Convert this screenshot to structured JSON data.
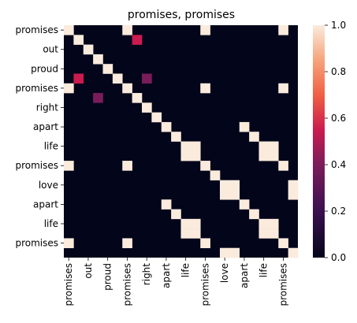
{
  "chart_data": {
    "type": "heatmap",
    "title": "promises, promises",
    "tokens": [
      "promises",
      "?",
      "out",
      "?",
      "proud",
      "?",
      "promises",
      "?",
      "right",
      "?",
      "apart",
      "?",
      "life",
      "?",
      "promises",
      "?",
      "love",
      "?",
      "apart",
      "?",
      "life",
      "?",
      "promises",
      "?"
    ],
    "y_tick_labels": [
      "promises",
      "out",
      "proud",
      "promises",
      "right",
      "apart",
      "life",
      "promises",
      "love",
      "apart",
      "life",
      "promises"
    ],
    "x_tick_labels": [
      "promises",
      "out",
      "proud",
      "promises",
      "right",
      "apart",
      "life",
      "promises",
      "love",
      "apart",
      "life",
      "promises"
    ],
    "colorbar": {
      "min": 0.0,
      "max": 1.0,
      "ticks": [
        "0.0",
        "0.2",
        "0.4",
        "0.6",
        "0.8",
        "1.0"
      ]
    },
    "cells": [
      {
        "row": 0,
        "col": 0,
        "value": 1.0
      },
      {
        "row": 0,
        "col": 6,
        "value": 1.0
      },
      {
        "row": 0,
        "col": 14,
        "value": 1.0
      },
      {
        "row": 0,
        "col": 22,
        "value": 1.0
      },
      {
        "row": 1,
        "col": 1,
        "value": 1.0
      },
      {
        "row": 1,
        "col": 7,
        "value": 0.55
      },
      {
        "row": 2,
        "col": 2,
        "value": 1.0
      },
      {
        "row": 3,
        "col": 3,
        "value": 1.0
      },
      {
        "row": 4,
        "col": 4,
        "value": 1.0
      },
      {
        "row": 5,
        "col": 1,
        "value": 0.55
      },
      {
        "row": 5,
        "col": 5,
        "value": 1.0
      },
      {
        "row": 5,
        "col": 8,
        "value": 0.4
      },
      {
        "row": 6,
        "col": 0,
        "value": 1.0
      },
      {
        "row": 6,
        "col": 6,
        "value": 1.0
      },
      {
        "row": 6,
        "col": 14,
        "value": 1.0
      },
      {
        "row": 6,
        "col": 22,
        "value": 1.0
      },
      {
        "row": 7,
        "col": 7,
        "value": 1.0
      },
      {
        "row": 7,
        "col": 3,
        "value": 0.4
      },
      {
        "row": 8,
        "col": 8,
        "value": 1.0
      },
      {
        "row": 9,
        "col": 9,
        "value": 1.0
      },
      {
        "row": 10,
        "col": 10,
        "value": 1.0
      },
      {
        "row": 10,
        "col": 18,
        "value": 1.0
      },
      {
        "row": 11,
        "col": 11,
        "value": 1.0
      },
      {
        "row": 11,
        "col": 19,
        "value": 1.0
      },
      {
        "row": 12,
        "col": 12,
        "value": 1.0
      },
      {
        "row": 12,
        "col": 13,
        "value": 1.0
      },
      {
        "row": 12,
        "col": 20,
        "value": 1.0
      },
      {
        "row": 12,
        "col": 21,
        "value": 1.0
      },
      {
        "row": 13,
        "col": 12,
        "value": 1.0
      },
      {
        "row": 13,
        "col": 13,
        "value": 1.0
      },
      {
        "row": 13,
        "col": 20,
        "value": 1.0
      },
      {
        "row": 13,
        "col": 21,
        "value": 1.0
      },
      {
        "row": 14,
        "col": 0,
        "value": 1.0
      },
      {
        "row": 14,
        "col": 6,
        "value": 1.0
      },
      {
        "row": 14,
        "col": 14,
        "value": 1.0
      },
      {
        "row": 14,
        "col": 22,
        "value": 1.0
      },
      {
        "row": 15,
        "col": 15,
        "value": 1.0
      },
      {
        "row": 16,
        "col": 16,
        "value": 1.0
      },
      {
        "row": 16,
        "col": 17,
        "value": 1.0
      },
      {
        "row": 16,
        "col": 23,
        "value": 1.0
      },
      {
        "row": 17,
        "col": 16,
        "value": 1.0
      },
      {
        "row": 17,
        "col": 17,
        "value": 1.0
      },
      {
        "row": 17,
        "col": 23,
        "value": 1.0
      },
      {
        "row": 18,
        "col": 10,
        "value": 1.0
      },
      {
        "row": 18,
        "col": 18,
        "value": 1.0
      },
      {
        "row": 19,
        "col": 11,
        "value": 1.0
      },
      {
        "row": 19,
        "col": 19,
        "value": 1.0
      },
      {
        "row": 20,
        "col": 12,
        "value": 1.0
      },
      {
        "row": 20,
        "col": 13,
        "value": 1.0
      },
      {
        "row": 20,
        "col": 20,
        "value": 1.0
      },
      {
        "row": 20,
        "col": 21,
        "value": 1.0
      },
      {
        "row": 21,
        "col": 12,
        "value": 1.0
      },
      {
        "row": 21,
        "col": 13,
        "value": 1.0
      },
      {
        "row": 21,
        "col": 20,
        "value": 1.0
      },
      {
        "row": 21,
        "col": 21,
        "value": 1.0
      },
      {
        "row": 22,
        "col": 0,
        "value": 1.0
      },
      {
        "row": 22,
        "col": 6,
        "value": 1.0
      },
      {
        "row": 22,
        "col": 14,
        "value": 1.0
      },
      {
        "row": 22,
        "col": 22,
        "value": 1.0
      },
      {
        "row": 23,
        "col": 16,
        "value": 1.0
      },
      {
        "row": 23,
        "col": 17,
        "value": 1.0
      },
      {
        "row": 23,
        "col": 23,
        "value": 1.0
      }
    ]
  }
}
